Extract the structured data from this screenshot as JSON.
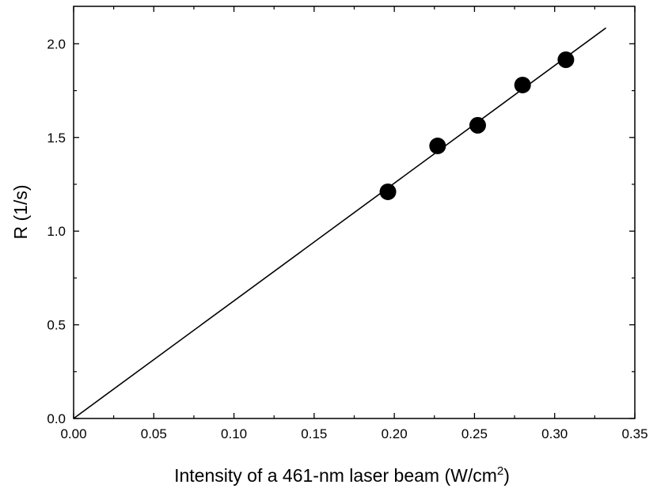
{
  "chart_data": {
    "type": "scatter",
    "xlabel_main": "Intensity of a 461-nm laser beam (W/cm",
    "xlabel_sup": "2",
    "xlabel_end": ")",
    "ylabel": "R (1/s)",
    "xlim": [
      0.0,
      0.35
    ],
    "ylim": [
      0.0,
      2.2
    ],
    "x_ticks": [
      "0.00",
      "0.05",
      "0.10",
      "0.15",
      "0.20",
      "0.25",
      "0.30",
      "0.35"
    ],
    "y_ticks": [
      "0.0",
      "0.5",
      "1.0",
      "1.5",
      "2.0"
    ],
    "grid": false,
    "points": [
      {
        "x": 0.196,
        "y": 1.21
      },
      {
        "x": 0.227,
        "y": 1.455
      },
      {
        "x": 0.252,
        "y": 1.565
      },
      {
        "x": 0.28,
        "y": 1.78
      },
      {
        "x": 0.307,
        "y": 1.915
      }
    ],
    "fit_line": {
      "x": [
        0.0,
        0.332
      ],
      "y": [
        0.0,
        2.085
      ]
    },
    "colors": {
      "marker": "#000000",
      "line": "#000000",
      "axes": "#000000"
    }
  }
}
